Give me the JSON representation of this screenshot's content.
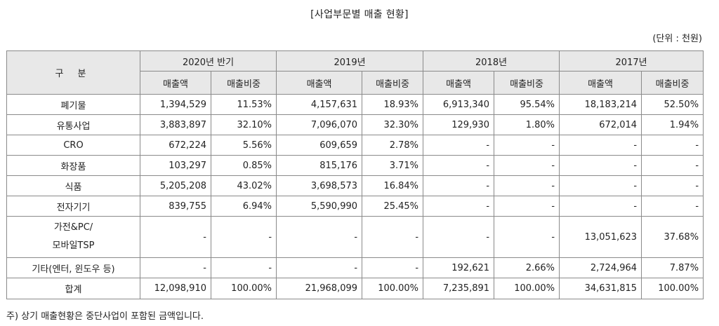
{
  "title": "[사업부문별 매출 현황]",
  "unit": "(단위 : 천원)",
  "header": {
    "corner": "구 분",
    "periods": [
      "2020년 반기",
      "2019년",
      "2018년",
      "2017년"
    ],
    "sub": [
      "매출액",
      "매출비중",
      "매출액",
      "매출비중",
      "매출액",
      "매출비중",
      "매출액",
      "매출비중"
    ]
  },
  "rows": [
    {
      "label": "폐기물",
      "cells": [
        "1,394,529",
        "11.53%",
        "4,157,631",
        "18.93%",
        "6,913,340",
        "95.54%",
        "18,183,214",
        "52.50%"
      ]
    },
    {
      "label": "유통사업",
      "cells": [
        "3,883,897",
        "32.10%",
        "7,096,070",
        "32.30%",
        "129,930",
        "1.80%",
        "672,014",
        "1.94%"
      ]
    },
    {
      "label": "CRO",
      "cells": [
        "672,224",
        "5.56%",
        "609,659",
        "2.78%",
        "-",
        "-",
        "-",
        "-"
      ]
    },
    {
      "label": "화장품",
      "cells": [
        "103,297",
        "0.85%",
        "815,176",
        "3.71%",
        "-",
        "-",
        "-",
        "-"
      ]
    },
    {
      "label": "식품",
      "cells": [
        "5,205,208",
        "43.02%",
        "3,698,573",
        "16.84%",
        "-",
        "-",
        "-",
        "-"
      ]
    },
    {
      "label": "전자기기",
      "cells": [
        "839,755",
        "6.94%",
        "5,590,990",
        "25.45%",
        "-",
        "-",
        "-",
        "-"
      ]
    },
    {
      "label_line1": "가전&PC/",
      "label_line2": "모바일TSP",
      "cells": [
        "-",
        "-",
        "-",
        "-",
        "-",
        "-",
        "13,051,623",
        "37.68%"
      ]
    },
    {
      "label": "기타(엔터, 윈도우 등)",
      "cells": [
        "-",
        "-",
        "-",
        "-",
        "192,621",
        "2.66%",
        "2,724,964",
        "7.87%"
      ]
    },
    {
      "label": "합계",
      "cells": [
        "12,098,910",
        "100.00%",
        "21,968,099",
        "100.00%",
        "7,235,891",
        "100.00%",
        "34,631,815",
        "100.00%"
      ]
    }
  ],
  "note": "주) 상기 매출현황은 중단사업이 포함된 금액입니다."
}
